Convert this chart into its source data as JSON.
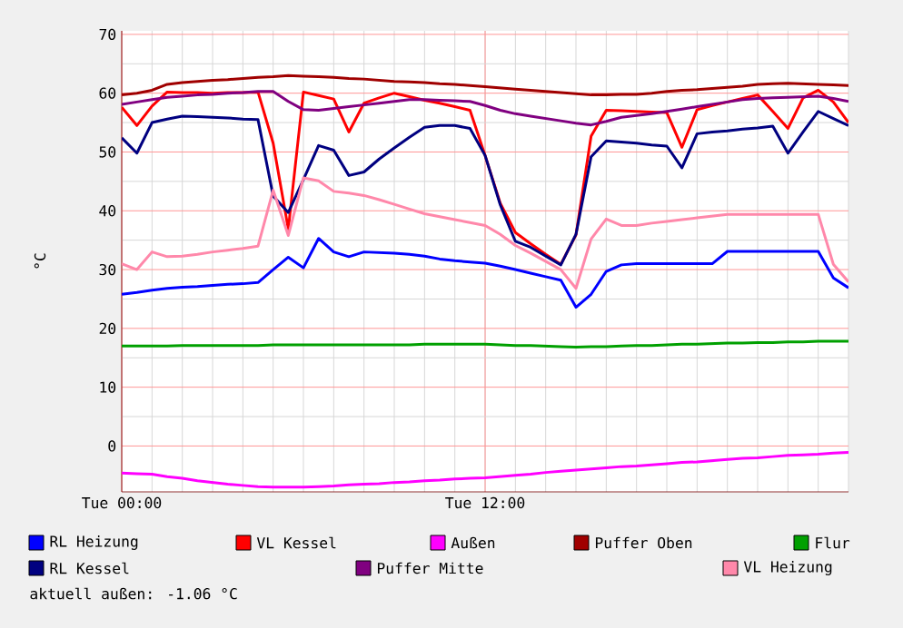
{
  "chart_data": {
    "type": "line",
    "ylabel": "°C",
    "ylim": [
      -7.8,
      70.6
    ],
    "categories": [
      "Tue 00:00",
      null,
      null,
      null,
      null,
      null,
      null,
      null,
      null,
      null,
      null,
      null,
      null,
      null,
      null,
      null,
      null,
      null,
      null,
      null,
      null,
      null,
      null,
      null,
      "Tue 12:00",
      null,
      null,
      null,
      null,
      null,
      null,
      null,
      null,
      null,
      null,
      null,
      null,
      null,
      null,
      null,
      null,
      null,
      null,
      null,
      null,
      null,
      null,
      null,
      null
    ],
    "yticks": [
      0,
      10,
      20,
      30,
      40,
      50,
      60,
      70
    ],
    "grid": true,
    "legend": "bottom",
    "marker": "none",
    "line_style": "solid",
    "annotations": [
      "aktuell außen: -1.06 °C"
    ],
    "series": [
      {
        "name": "RL Heizung",
        "color": "#0000ff",
        "values": [
          25.8,
          26.1,
          26.5,
          26.8,
          27,
          27.1,
          27.3,
          27.5,
          27.6,
          27.8,
          30,
          32.1,
          30.3,
          35.3,
          33,
          32.2,
          33,
          32.9,
          32.8,
          32.6,
          32.3,
          31.8,
          31.5,
          31.3,
          31.1,
          30.6,
          30,
          29.4,
          28.8,
          28.2,
          23.6,
          25.8,
          29.7,
          30.8,
          31,
          31,
          31,
          31,
          31,
          31,
          33.1,
          33.1,
          33.1,
          33.1,
          33.1,
          33.1,
          33.1,
          28.6,
          26.9
        ]
      },
      {
        "name": "VL Kessel",
        "color": "#ff0000",
        "values": [
          57.6,
          54.5,
          57.8,
          60.2,
          60.1,
          60.1,
          60,
          60.1,
          60.1,
          60.2,
          51.5,
          36.9,
          60.2,
          59.6,
          59,
          53.4,
          58.3,
          59.2,
          60,
          59.4,
          58.8,
          58.3,
          57.7,
          57.1,
          49.4,
          41.3,
          36.3,
          34.4,
          32.6,
          30.9,
          35.9,
          52.7,
          57.1,
          57,
          56.9,
          56.8,
          56.7,
          50.8,
          57.2,
          57.9,
          58.5,
          59.1,
          59.7,
          56.9,
          54,
          59.2,
          60.5,
          58.5,
          55
        ]
      },
      {
        "name": "Außen",
        "color": "#ff00ff",
        "values": [
          -4.6,
          -4.7,
          -4.8,
          -5.2,
          -5.5,
          -5.9,
          -6.2,
          -6.5,
          -6.7,
          -6.9,
          -7,
          -7,
          -7,
          -6.9,
          -6.8,
          -6.6,
          -6.5,
          -6.4,
          -6.2,
          -6.1,
          -5.9,
          -5.8,
          -5.6,
          -5.5,
          -5.4,
          -5.2,
          -5,
          -4.8,
          -4.5,
          -4.3,
          -4.1,
          -3.9,
          -3.7,
          -3.5,
          -3.4,
          -3.2,
          -3,
          -2.8,
          -2.7,
          -2.5,
          -2.3,
          -2.1,
          -2,
          -1.8,
          -1.6,
          -1.5,
          -1.4,
          -1.2,
          -1.1
        ]
      },
      {
        "name": "Puffer Oben",
        "color": "#a00000",
        "values": [
          59.7,
          60,
          60.5,
          61.5,
          61.8,
          62,
          62.2,
          62.3,
          62.5,
          62.7,
          62.8,
          63,
          62.9,
          62.8,
          62.7,
          62.5,
          62.4,
          62.2,
          62,
          61.9,
          61.8,
          61.6,
          61.5,
          61.3,
          61.1,
          60.9,
          60.7,
          60.5,
          60.3,
          60.1,
          59.9,
          59.7,
          59.7,
          59.8,
          59.8,
          60,
          60.3,
          60.5,
          60.6,
          60.8,
          61,
          61.2,
          61.5,
          61.6,
          61.7,
          61.6,
          61.5,
          61.4,
          61.3
        ]
      },
      {
        "name": "Flur",
        "color": "#00a000",
        "values": [
          17,
          17,
          17,
          17,
          17.1,
          17.1,
          17.1,
          17.1,
          17.1,
          17.1,
          17.2,
          17.2,
          17.2,
          17.2,
          17.2,
          17.2,
          17.2,
          17.2,
          17.2,
          17.2,
          17.3,
          17.3,
          17.3,
          17.3,
          17.3,
          17.2,
          17.1,
          17.1,
          17,
          16.9,
          16.8,
          16.9,
          16.9,
          17,
          17.1,
          17.1,
          17.2,
          17.3,
          17.3,
          17.4,
          17.5,
          17.5,
          17.6,
          17.6,
          17.7,
          17.7,
          17.8,
          17.8,
          17.8
        ]
      },
      {
        "name": "RL Kessel",
        "color": "#000080",
        "values": [
          52.4,
          49.8,
          55,
          55.6,
          56.1,
          56,
          55.9,
          55.8,
          55.6,
          55.5,
          42.5,
          39.7,
          45.3,
          51.1,
          50.3,
          46,
          46.6,
          48.8,
          50.7,
          52.5,
          54.2,
          54.5,
          54.5,
          54,
          49.4,
          41,
          34.8,
          33.8,
          32.3,
          30.8,
          36,
          49.2,
          51.9,
          51.7,
          51.5,
          51.2,
          51,
          47.3,
          53.1,
          53.4,
          53.6,
          53.9,
          54.1,
          54.4,
          49.8,
          53.4,
          56.9,
          55.7,
          54.5
        ]
      },
      {
        "name": "Puffer Mitte",
        "color": "#800080",
        "values": [
          58.1,
          58.5,
          58.9,
          59.3,
          59.5,
          59.7,
          59.8,
          60,
          60.1,
          60.3,
          60.3,
          58.6,
          57.2,
          57.1,
          57.4,
          57.7,
          58,
          58.3,
          58.6,
          58.9,
          58.9,
          58.8,
          58.7,
          58.6,
          57.9,
          57.1,
          56.5,
          56.1,
          55.7,
          55.3,
          54.9,
          54.6,
          55.2,
          55.9,
          56.2,
          56.5,
          56.9,
          57.3,
          57.7,
          58.1,
          58.5,
          58.9,
          59.1,
          59.2,
          59.3,
          59.4,
          59.5,
          59.1,
          58.6
        ]
      },
      {
        "name": "VL Heizung",
        "color": "#ff88aa",
        "values": [
          31,
          30,
          33,
          32.2,
          32.3,
          32.6,
          33,
          33.3,
          33.6,
          34,
          43.5,
          35.8,
          45.6,
          45.1,
          43.3,
          43,
          42.6,
          41.9,
          41.1,
          40.3,
          39.5,
          39,
          38.5,
          38,
          37.5,
          36,
          34.1,
          32.8,
          31.4,
          30,
          26.8,
          35.2,
          38.6,
          37.5,
          37.5,
          37.9,
          38.2,
          38.5,
          38.8,
          39.1,
          39.4,
          39.4,
          39.4,
          39.4,
          39.4,
          39.4,
          39.4,
          30.9,
          27.9
        ]
      }
    ]
  }
}
